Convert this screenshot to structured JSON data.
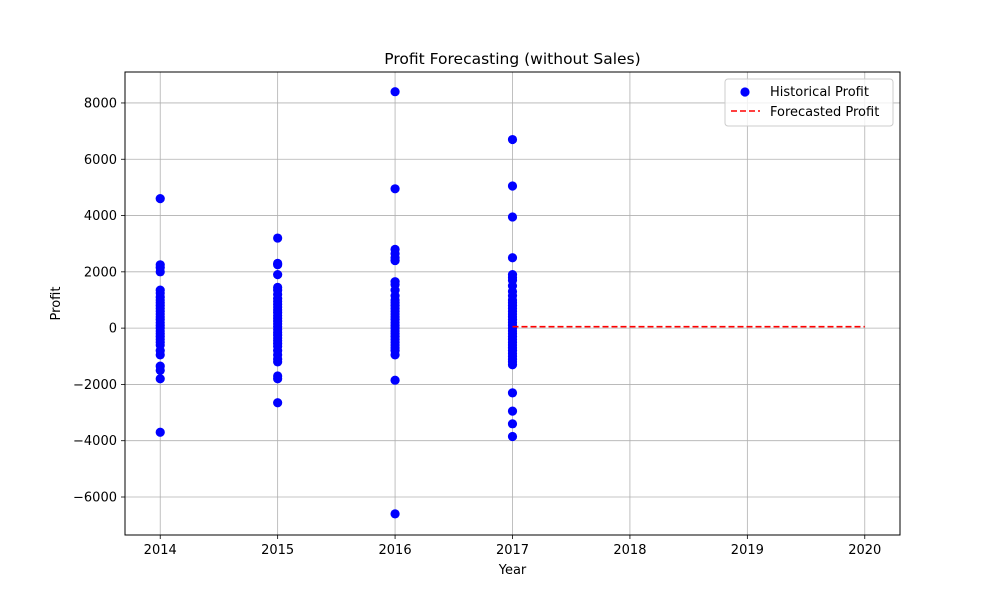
{
  "chart_data": {
    "type": "scatter",
    "title": "Profit Forecasting (without Sales)",
    "xlabel": "Year",
    "ylabel": "Profit",
    "xlim": [
      2013.7,
      2020.3
    ],
    "ylim": [
      -7350,
      9100
    ],
    "x_ticks": [
      2014,
      2015,
      2016,
      2017,
      2018,
      2019,
      2020
    ],
    "y_ticks": [
      -6000,
      -4000,
      -2000,
      0,
      2000,
      4000,
      6000,
      8000
    ],
    "grid": true,
    "legend_position": "top-right",
    "series": [
      {
        "name": "Historical Profit",
        "kind": "scatter",
        "color": "#0000ff",
        "points": [
          {
            "year": 2014,
            "profits": [
              4600,
              2250,
              2150,
              2000,
              1350,
              1250,
              1100,
              1000,
              900,
              800,
              700,
              600,
              500,
              400,
              300,
              200,
              100,
              0,
              -100,
              -200,
              -300,
              -400,
              -500,
              -600,
              -800,
              -950,
              -1350,
              -1500,
              -1800,
              -3700
            ]
          },
          {
            "year": 2015,
            "profits": [
              3200,
              2300,
              2250,
              1900,
              1450,
              1350,
              1200,
              1050,
              950,
              850,
              750,
              650,
              550,
              450,
              350,
              250,
              150,
              50,
              -50,
              -150,
              -250,
              -350,
              -450,
              -550,
              -650,
              -800,
              -950,
              -1100,
              -1200,
              -1700,
              -1800,
              -2650
            ]
          },
          {
            "year": 2016,
            "profits": [
              8400,
              4950,
              2800,
              2650,
              2500,
              2400,
              1650,
              1550,
              1350,
              1150,
              1000,
              900,
              800,
              700,
              600,
              500,
              400,
              300,
              200,
              100,
              0,
              -100,
              -200,
              -300,
              -400,
              -500,
              -600,
              -700,
              -800,
              -950,
              -1850,
              -6600
            ]
          },
          {
            "year": 2017,
            "profits": [
              6700,
              5050,
              3950,
              2500,
              1900,
              1800,
              1700,
              1500,
              1300,
              1150,
              1000,
              900,
              800,
              700,
              600,
              500,
              400,
              300,
              200,
              100,
              0,
              -100,
              -200,
              -300,
              -400,
              -500,
              -600,
              -700,
              -800,
              -900,
              -1000,
              -1100,
              -1200,
              -1300,
              -2300,
              -2950,
              -3400,
              -3850
            ]
          }
        ]
      },
      {
        "name": "Forecasted Profit",
        "kind": "line",
        "color": "#ff0000",
        "line_style": "dashed",
        "x": [
          2017,
          2020
        ],
        "y": [
          50,
          50
        ]
      }
    ]
  }
}
